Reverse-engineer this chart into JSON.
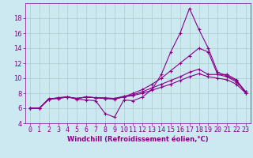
{
  "xlabel": "Windchill (Refroidissement éolien,°C)",
  "bg_color": "#cce8f0",
  "grid_color": "#aacccc",
  "line_color": "#880088",
  "marker": "+",
  "xlim": [
    -0.5,
    23.5
  ],
  "ylim": [
    4,
    20
  ],
  "yticks": [
    4,
    6,
    8,
    10,
    12,
    14,
    16,
    18
  ],
  "xticks": [
    0,
    1,
    2,
    3,
    4,
    5,
    6,
    7,
    8,
    9,
    10,
    11,
    12,
    13,
    14,
    15,
    16,
    17,
    18,
    19,
    20,
    21,
    22,
    23
  ],
  "series": [
    [
      6.0,
      6.0,
      7.3,
      7.3,
      7.5,
      7.2,
      7.1,
      7.0,
      5.3,
      4.8,
      7.1,
      7.0,
      7.5,
      8.5,
      10.5,
      13.5,
      16.0,
      19.3,
      16.5,
      14.0,
      10.8,
      10.3,
      9.7,
      8.2
    ],
    [
      6.0,
      6.0,
      7.2,
      7.3,
      7.5,
      7.3,
      7.5,
      7.4,
      7.3,
      7.3,
      7.5,
      8.0,
      8.5,
      9.2,
      10.0,
      11.0,
      12.0,
      13.0,
      14.0,
      13.5,
      10.5,
      10.2,
      9.5,
      8.2
    ],
    [
      6.0,
      6.0,
      7.2,
      7.4,
      7.5,
      7.3,
      7.5,
      7.4,
      7.4,
      7.3,
      7.6,
      7.8,
      8.2,
      8.7,
      9.2,
      9.7,
      10.2,
      10.8,
      11.2,
      10.5,
      10.5,
      10.5,
      9.8,
      8.0
    ],
    [
      6.0,
      6.0,
      7.2,
      7.4,
      7.5,
      7.3,
      7.5,
      7.4,
      7.3,
      7.2,
      7.5,
      7.7,
      8.0,
      8.4,
      8.8,
      9.2,
      9.7,
      10.2,
      10.6,
      10.2,
      10.0,
      9.8,
      9.2,
      8.0
    ]
  ],
  "xlabel_fontsize": 6,
  "tick_fontsize": 6,
  "linewidth": 0.8,
  "markersize": 3
}
